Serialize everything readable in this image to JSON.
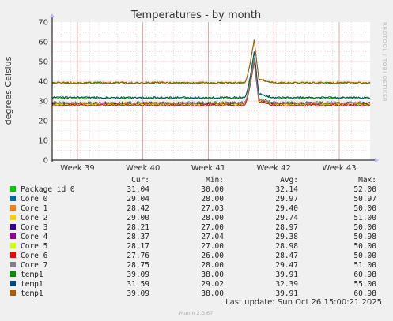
{
  "chart_data": {
    "type": "line",
    "title": "Temperatures - by month",
    "ylabel": "degrees Celsius",
    "side_label": "RRDTOOL / TOBI OETIKER",
    "ylim": [
      0,
      70
    ],
    "yticks": [
      0,
      10,
      20,
      30,
      40,
      50,
      60,
      70
    ],
    "xlim": [
      0,
      34
    ],
    "xticks": [
      {
        "label": "Week 39",
        "pos": 2.7
      },
      {
        "label": "Week 40",
        "pos": 9.7
      },
      {
        "label": "Week 41",
        "pos": 16.7
      },
      {
        "label": "Week 42",
        "pos": 23.7
      },
      {
        "label": "Week 43",
        "pos": 30.7
      }
    ],
    "spike": {
      "start": 20.6,
      "peak": 21.6,
      "end": 22.1
    },
    "grid": true,
    "columns": [
      "Cur:",
      "Min:",
      "Avg:",
      "Max:"
    ],
    "series": [
      {
        "name": "Package id 0",
        "color": "#00cc00",
        "cur": "31.04",
        "min": "30.00",
        "avg": "32.14",
        "max": "52.00",
        "base": 31.5,
        "peak": 52
      },
      {
        "name": "Core 0",
        "color": "#0066b3",
        "cur": "29.04",
        "min": "28.00",
        "avg": "29.97",
        "max": "50.97",
        "base": 29.2,
        "peak": 51
      },
      {
        "name": "Core 1",
        "color": "#ff8000",
        "cur": "28.42",
        "min": "27.03",
        "avg": "29.40",
        "max": "50.00",
        "base": 28.6,
        "peak": 50
      },
      {
        "name": "Core 2",
        "color": "#ffcc00",
        "cur": "29.00",
        "min": "28.00",
        "avg": "29.74",
        "max": "51.00",
        "base": 29.0,
        "peak": 51
      },
      {
        "name": "Core 3",
        "color": "#330099",
        "cur": "28.21",
        "min": "27.00",
        "avg": "28.97",
        "max": "50.00",
        "base": 28.3,
        "peak": 50
      },
      {
        "name": "Core 4",
        "color": "#990099",
        "cur": "28.37",
        "min": "27.04",
        "avg": "29.38",
        "max": "50.98",
        "base": 28.6,
        "peak": 51
      },
      {
        "name": "Core 5",
        "color": "#ccff00",
        "cur": "28.17",
        "min": "27.00",
        "avg": "28.98",
        "max": "50.00",
        "base": 28.2,
        "peak": 50
      },
      {
        "name": "Core 6",
        "color": "#ff0000",
        "cur": "27.76",
        "min": "26.00",
        "avg": "28.47",
        "max": "50.00",
        "base": 27.8,
        "peak": 50
      },
      {
        "name": "Core 7",
        "color": "#808080",
        "cur": "28.75",
        "min": "28.00",
        "avg": "29.47",
        "max": "51.00",
        "base": 28.8,
        "peak": 51
      },
      {
        "name": "temp1",
        "color": "#008f00",
        "cur": "39.09",
        "min": "38.00",
        "avg": "39.91",
        "max": "60.98",
        "base": 39.2,
        "peak": 61
      },
      {
        "name": "temp1",
        "color": "#00487d",
        "cur": "31.59",
        "min": "29.02",
        "avg": "32.39",
        "max": "55.00",
        "base": 31.7,
        "peak": 55
      },
      {
        "name": "temp1",
        "color": "#b35a00",
        "cur": "39.09",
        "min": "38.00",
        "avg": "39.91",
        "max": "60.98",
        "base": 39.2,
        "peak": 61
      }
    ]
  },
  "footer": {
    "last_update": "Last update: Sun Oct 26 15:00:21 2025",
    "version": "Munin 2.0.67"
  }
}
